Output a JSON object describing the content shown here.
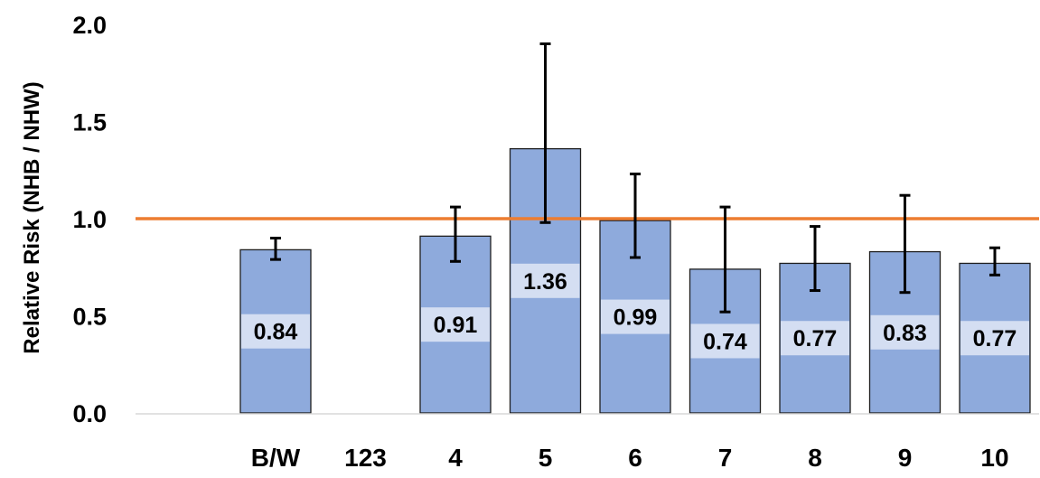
{
  "chart_data": {
    "type": "bar",
    "title": "",
    "xlabel": "",
    "ylabel": "Relative Risk (NHB / NHW)",
    "ylim": [
      0,
      2.0
    ],
    "yticks": [
      "0.0",
      "0.5",
      "1.0",
      "1.5",
      "2.0"
    ],
    "grid": false,
    "legend": "none",
    "categories": [
      "B/W",
      "123",
      "4",
      "5",
      "6",
      "7",
      "8",
      "9",
      "10"
    ],
    "values": [
      0.84,
      null,
      0.91,
      1.36,
      0.99,
      0.74,
      0.77,
      0.83,
      0.77
    ],
    "data_labels": [
      "0.84",
      "",
      "0.91",
      "1.36",
      "0.99",
      "0.74",
      "0.77",
      "0.83",
      "0.77"
    ],
    "error_low": [
      0.79,
      null,
      0.78,
      0.98,
      0.8,
      0.52,
      0.63,
      0.62,
      0.71
    ],
    "error_high": [
      0.9,
      null,
      1.06,
      1.9,
      1.23,
      1.06,
      0.96,
      1.12,
      0.85
    ],
    "reference_line": 1.0,
    "colors": {
      "bar_fill": "#8eaadc",
      "bar_stroke": "#1f1f1f",
      "label_box": "#dae3f3",
      "reference_line": "#ed7d31",
      "error_bar": "#000000",
      "axis": "#d9d9d9"
    }
  }
}
